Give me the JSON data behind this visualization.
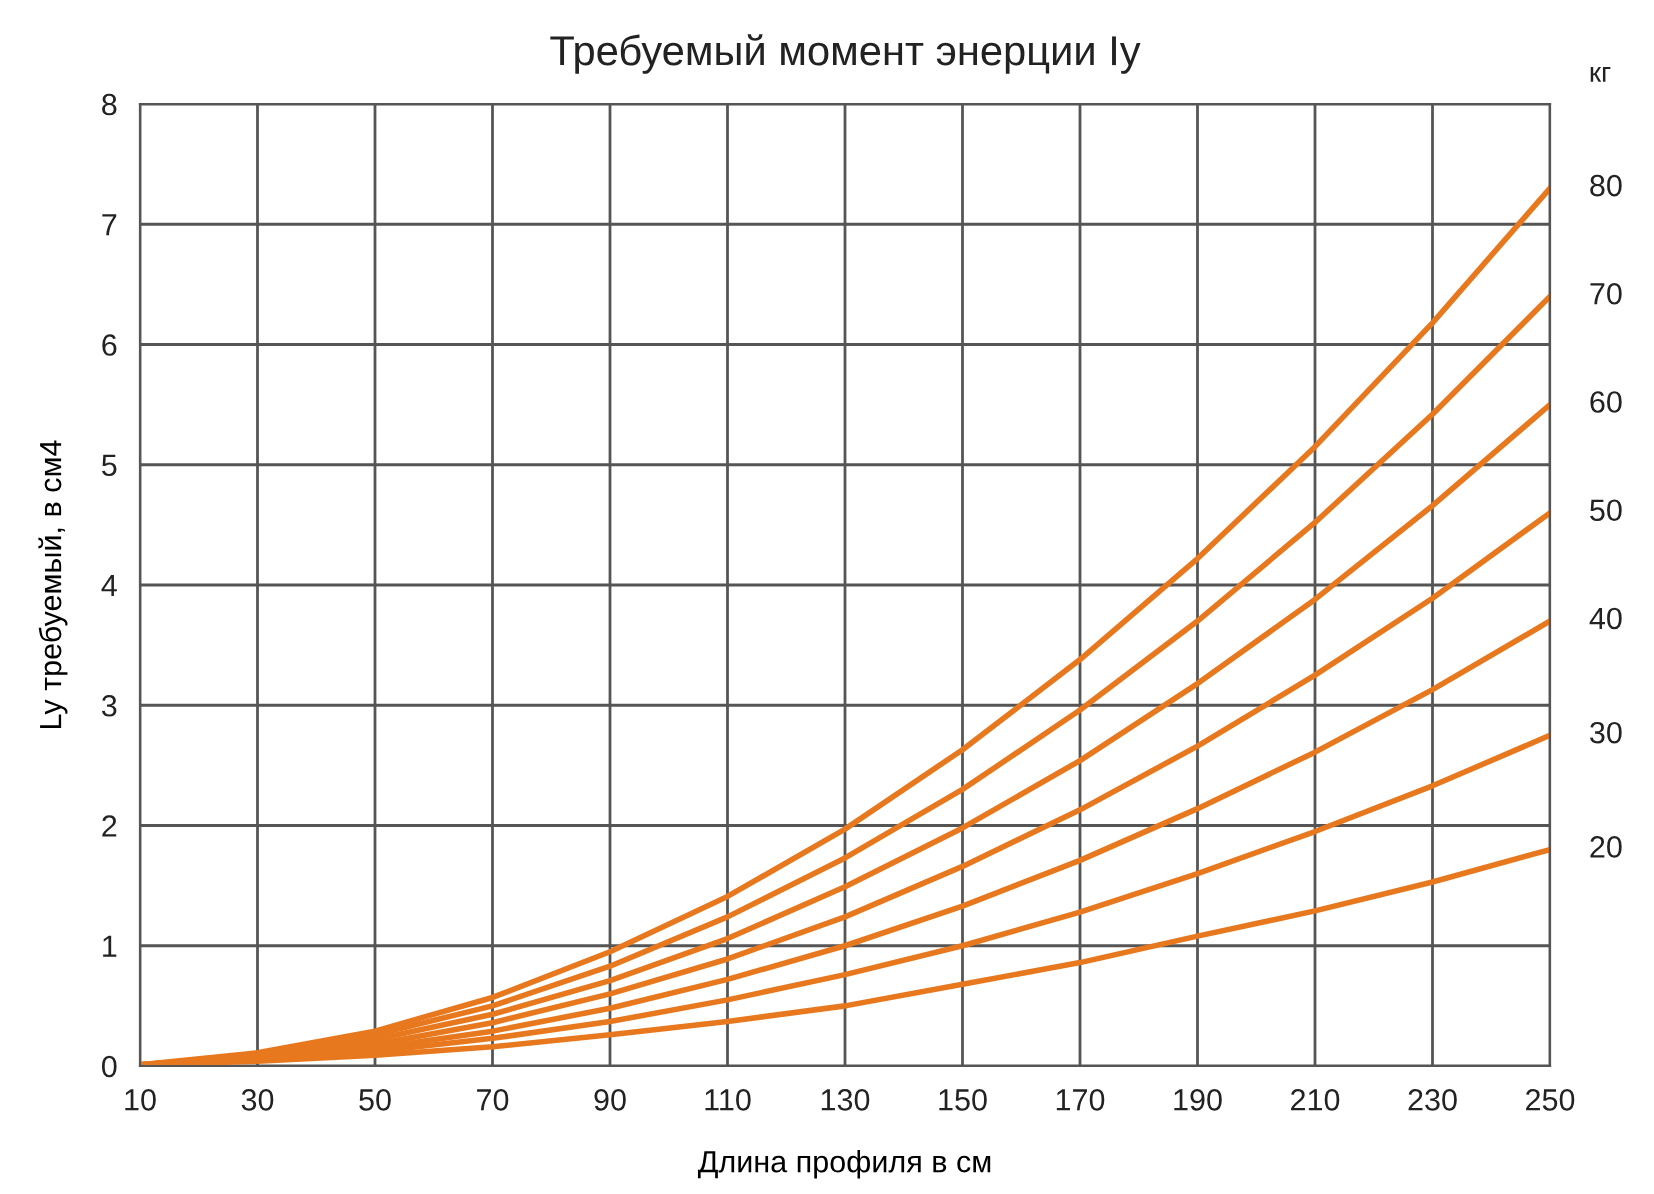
{
  "chart_data": {
    "type": "line",
    "title": "Требуемый момент энерции Iy",
    "xlabel": "Длина профиля в см",
    "ylabel": "Ly требуемый, в см4",
    "legend_title": "кг",
    "x": [
      10,
      30,
      50,
      70,
      90,
      110,
      130,
      150,
      170,
      190,
      210,
      230,
      250
    ],
    "series": [
      {
        "name": "80",
        "color": "#e8781e",
        "values": [
          0.01,
          0.11,
          0.29,
          0.57,
          0.95,
          1.41,
          1.97,
          2.63,
          3.38,
          4.22,
          5.15,
          6.18,
          7.3
        ]
      },
      {
        "name": "70",
        "color": "#e8781e",
        "values": [
          0.01,
          0.09,
          0.26,
          0.5,
          0.83,
          1.24,
          1.73,
          2.3,
          2.96,
          3.7,
          4.52,
          5.42,
          6.4
        ]
      },
      {
        "name": "60",
        "color": "#e8781e",
        "values": [
          0.01,
          0.08,
          0.22,
          0.43,
          0.71,
          1.06,
          1.49,
          1.98,
          2.54,
          3.18,
          3.88,
          4.66,
          5.5
        ]
      },
      {
        "name": "50",
        "color": "#e8781e",
        "values": [
          0.01,
          0.07,
          0.18,
          0.36,
          0.6,
          0.89,
          1.24,
          1.66,
          2.13,
          2.66,
          3.25,
          3.89,
          4.6
        ]
      },
      {
        "name": "40",
        "color": "#e8781e",
        "values": [
          0.01,
          0.05,
          0.15,
          0.29,
          0.48,
          0.72,
          1.0,
          1.33,
          1.71,
          2.14,
          2.61,
          3.13,
          3.7
        ]
      },
      {
        "name": "30",
        "color": "#e8781e",
        "values": [
          0.01,
          0.05,
          0.12,
          0.23,
          0.37,
          0.55,
          0.76,
          1.0,
          1.28,
          1.6,
          1.95,
          2.33,
          2.75
        ]
      },
      {
        "name": "20",
        "color": "#e8781e",
        "values": [
          0.01,
          0.04,
          0.09,
          0.16,
          0.26,
          0.37,
          0.5,
          0.68,
          0.86,
          1.08,
          1.29,
          1.53,
          1.8
        ]
      }
    ],
    "xlim": [
      10,
      250
    ],
    "xticks": [
      10,
      30,
      50,
      70,
      90,
      110,
      130,
      150,
      170,
      190,
      210,
      230,
      250
    ],
    "ylim": [
      0,
      8
    ],
    "yticks": [
      0,
      1,
      2,
      3,
      4,
      5,
      6,
      7,
      8
    ],
    "grid": true
  }
}
